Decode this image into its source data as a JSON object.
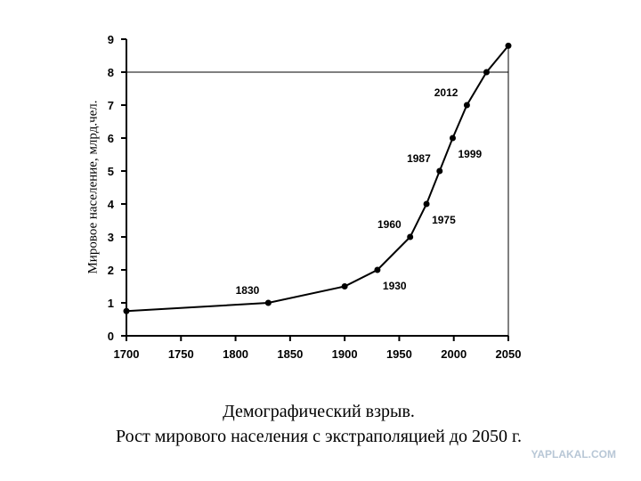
{
  "chart_data": {
    "type": "line",
    "y_label": "Мировое население, млрд.чел.",
    "caption": [
      "Демографический взрыв.",
      "Рост мирового населения с экстраполяцией до 2050 г."
    ],
    "watermark": "YAPLAKAL.COM",
    "x": [
      1700,
      1830,
      1900,
      1930,
      1960,
      1975,
      1987,
      1999,
      2012,
      2030,
      2050
    ],
    "series": [
      {
        "color": "#000000",
        "values": [
          0.75,
          1.0,
          1.5,
          2,
          3,
          4,
          5,
          6,
          7,
          8,
          8.8
        ]
      }
    ],
    "point_labels": [
      null,
      "1830",
      null,
      "1930",
      "1960",
      "1975",
      "1987",
      "1999",
      "2012",
      null,
      null
    ],
    "xlim": [
      1700,
      2050
    ],
    "xticks": [
      1700,
      1750,
      1800,
      1850,
      1900,
      1950,
      2000,
      2050
    ],
    "ylim": [
      0,
      9
    ],
    "yticks": [
      0,
      1,
      2,
      3,
      4,
      5,
      6,
      7,
      8,
      9
    ],
    "hlines": [
      8
    ]
  }
}
